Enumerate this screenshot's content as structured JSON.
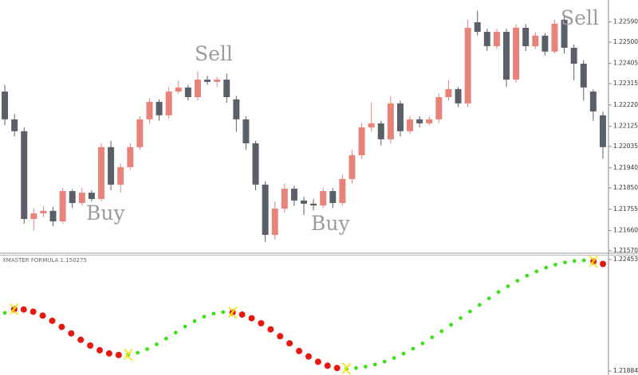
{
  "chart_data": [
    {
      "type": "candlestick",
      "annotations": [
        "Buy",
        "Sell",
        "Buy",
        "Sell"
      ],
      "up_color": "#e8837a",
      "down_color": "#5b5f68",
      "ylim": [
        1.2157,
        1.22688
      ],
      "yticks": [
        {
          "value": 1.2259,
          "label": "1.22590"
        },
        {
          "value": 1.225,
          "label": "1.22500"
        },
        1.22405,
        1.22315,
        {
          "value": 1.2222,
          "label": "1.22220"
        },
        1.22125,
        1.22035,
        {
          "value": 1.2194,
          "label": "1.21940"
        },
        {
          "value": 1.2185,
          "label": "1.21850"
        },
        1.21755,
        {
          "value": 1.2166,
          "label": "1.21660"
        },
        {
          "value": 1.2157,
          "label": "1.21570"
        }
      ],
      "open": [
        1.2228,
        1.22156,
        1.22103,
        1.21712,
        1.21737,
        1.21748,
        1.21701,
        1.21836,
        1.21783,
        1.21829,
        1.21801,
        1.22032,
        1.21865,
        1.21943,
        1.22032,
        1.22156,
        1.22234,
        1.22174,
        1.2228,
        1.22298,
        1.22255,
        1.22333,
        1.22323,
        1.22333,
        1.22245,
        1.22156,
        1.22049,
        1.21865,
        1.21641,
        1.21758,
        1.21847,
        1.21794,
        1.2178,
        1.21772,
        1.21836,
        1.21783,
        1.2189,
        1.21996,
        1.2212,
        1.22138,
        1.22067,
        1.22227,
        1.22103,
        1.22156,
        1.22138,
        1.22156,
        1.22255,
        1.22291,
        1.22227,
        1.22589,
        1.22546,
        1.22482,
        1.22546,
        1.22333,
        1.22564,
        1.22482,
        1.22529,
        1.22458,
        1.226,
        1.22475,
        1.22404,
        1.2228,
        1.22174
      ],
      "high": [
        1.2231,
        1.2218,
        1.2212,
        1.2176,
        1.2177,
        1.21765,
        1.2185,
        1.21845,
        1.2185,
        1.2184,
        1.2205,
        1.2206,
        1.2196,
        1.2205,
        1.2217,
        1.2225,
        1.22245,
        1.223,
        1.2233,
        1.2231,
        1.2237,
        1.2235,
        1.22345,
        1.2236,
        1.2226,
        1.2217,
        1.2206,
        1.2188,
        1.2179,
        1.2187,
        1.2186,
        1.2181,
        1.218,
        1.2185,
        1.2185,
        1.2191,
        1.2202,
        1.2214,
        1.2223,
        1.2215,
        1.2226,
        1.2224,
        1.2217,
        1.2217,
        1.2217,
        1.2227,
        1.2233,
        1.223,
        1.226,
        1.2264,
        1.2256,
        1.2256,
        1.2256,
        1.2258,
        1.2258,
        1.22545,
        1.2254,
        1.226,
        1.2262,
        1.2249,
        1.2242,
        1.2229,
        1.2219
      ],
      "low": [
        1.2213,
        1.2208,
        1.2169,
        1.2166,
        1.2172,
        1.2168,
        1.2169,
        1.2176,
        1.2177,
        1.2179,
        1.2179,
        1.2184,
        1.2183,
        1.2193,
        1.2202,
        1.2214,
        1.2215,
        1.2216,
        1.2227,
        1.2224,
        1.2224,
        1.2231,
        1.223,
        1.2223,
        1.221,
        1.2202,
        1.2184,
        1.2161,
        1.2162,
        1.2174,
        1.2177,
        1.2173,
        1.2175,
        1.2176,
        1.2176,
        1.2177,
        1.2187,
        1.2198,
        1.221,
        1.2204,
        1.2205,
        1.2208,
        1.2209,
        1.2212,
        1.2213,
        1.2214,
        1.2224,
        1.2221,
        1.2221,
        1.2253,
        1.2246,
        1.2247,
        1.223,
        1.2232,
        1.2246,
        1.2247,
        1.2244,
        1.2245,
        1.2245,
        1.2233,
        1.2224,
        1.2215,
        1.2198
      ],
      "close": [
        1.22156,
        1.22103,
        1.21712,
        1.21737,
        1.21748,
        1.21701,
        1.21836,
        1.21783,
        1.21829,
        1.21801,
        1.22032,
        1.21865,
        1.21943,
        1.22032,
        1.22156,
        1.22234,
        1.22174,
        1.2228,
        1.22298,
        1.22255,
        1.22333,
        1.22323,
        1.22333,
        1.22255,
        1.22156,
        1.22049,
        1.21865,
        1.21641,
        1.21758,
        1.21847,
        1.21794,
        1.2178,
        1.21772,
        1.21836,
        1.21783,
        1.2189,
        1.21996,
        1.2212,
        1.22138,
        1.22067,
        1.22227,
        1.22103,
        1.22156,
        1.22138,
        1.22156,
        1.22255,
        1.22291,
        1.22227,
        1.22564,
        1.22546,
        1.22482,
        1.22546,
        1.22333,
        1.22564,
        1.22482,
        1.22529,
        1.22458,
        1.22582,
        1.22475,
        1.22404,
        1.22298,
        1.22191,
        1.22032
      ]
    },
    {
      "type": "line",
      "title": "XMASTER FORMULA 1.150275",
      "ylim": [
        1.218845,
        1.224533
      ],
      "yticks": [
        1.224533,
        1.218845
      ],
      "series": [
        {
          "color": "#e8170f",
          "values": [
            null,
            1.221994,
            1.221986,
            1.221872,
            1.221673,
            1.221409,
            1.221096,
            1.220767,
            1.220438,
            1.220145,
            1.219905,
            1.219743,
            1.219662,
            null,
            null,
            null,
            null,
            null,
            null,
            null,
            null,
            null,
            null,
            null,
            1.221831,
            1.221726,
            1.221539,
            1.221283,
            1.22097,
            1.220621,
            1.220259,
            1.219865,
            1.219584,
            1.219316,
            1.219117,
            1.218999,
            null,
            null,
            null,
            null,
            null,
            null,
            null,
            null,
            null,
            null,
            null,
            null,
            null,
            null,
            null,
            null,
            null,
            null,
            null,
            null,
            null,
            null,
            null,
            null,
            null,
            null,
            1.224432,
            1.22431
          ]
        },
        {
          "color": "#3ee01a",
          "values": [
            1.221811,
            null,
            null,
            null,
            null,
            null,
            null,
            null,
            null,
            null,
            null,
            null,
            null,
            1.219678,
            1.219779,
            1.219962,
            1.220206,
            1.220499,
            1.220807,
            1.221116,
            1.221393,
            1.221616,
            1.221774,
            1.221848,
            null,
            null,
            null,
            null,
            null,
            null,
            null,
            null,
            null,
            null,
            null,
            null,
            1.218967,
            1.218995,
            1.219068,
            1.219178,
            1.219324,
            1.219511,
            1.219731,
            1.219983,
            1.220255,
            1.220564,
            1.220877,
            1.221206,
            1.221547,
            1.221884,
            1.222221,
            1.222555,
            1.222876,
            1.223172,
            1.223452,
            1.223708,
            1.223928,
            1.224119,
            1.224273,
            1.224387,
            1.22446,
            1.224493,
            null,
            null
          ]
        }
      ]
    }
  ]
}
